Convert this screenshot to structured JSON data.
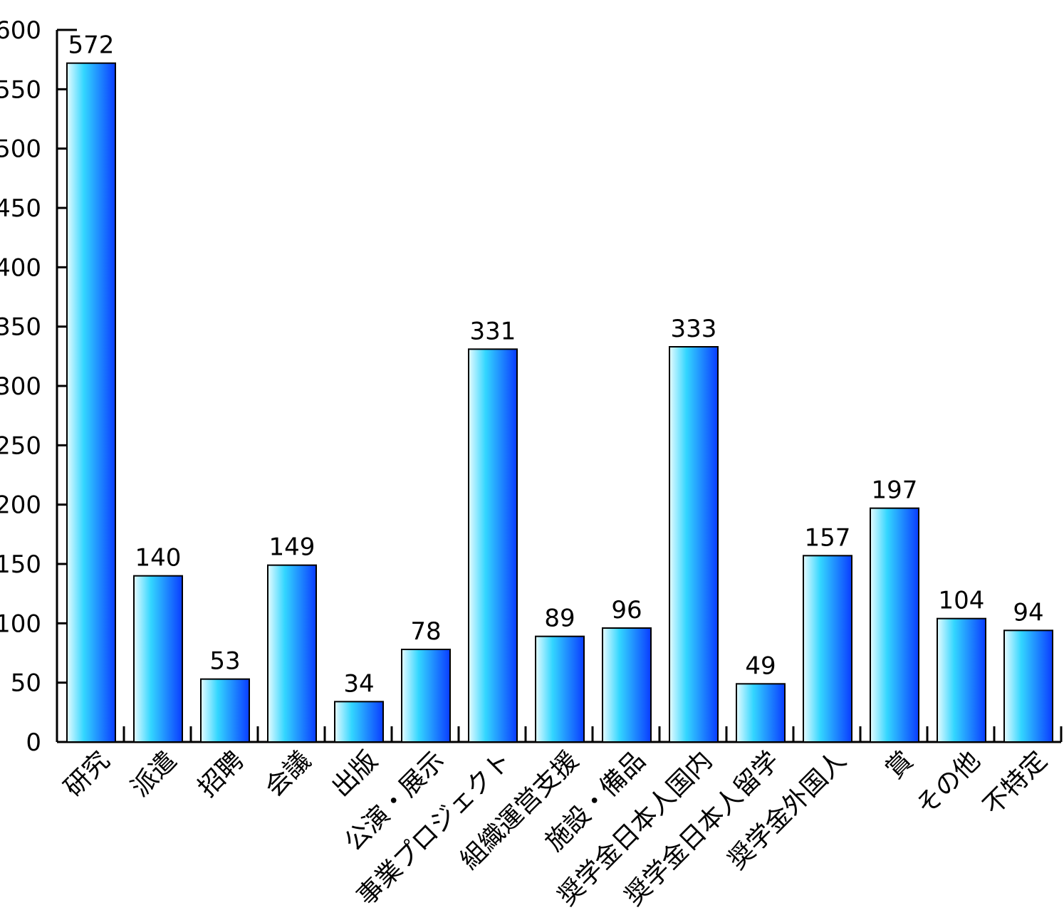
{
  "chart_data": {
    "type": "bar",
    "title": "",
    "xlabel": "",
    "ylabel": "",
    "ylim": [
      0,
      600
    ],
    "yticks": [
      0,
      50,
      100,
      150,
      200,
      250,
      300,
      350,
      400,
      450,
      500,
      550,
      600
    ],
    "grid": false,
    "data_labels": true,
    "bar_gradient": [
      "#e6fbff",
      "#33d6ff",
      "#0a3cff"
    ],
    "categories": [
      "研究",
      "派遣",
      "招聘",
      "会議",
      "出版",
      "公演・展示",
      "事業プロジェクト",
      "組織運営支援",
      "施設・備品",
      "奨学金日本人国内",
      "奨学金日本人留学",
      "奨学金外国人",
      "賞",
      "その他",
      "不特定"
    ],
    "values": [
      572,
      140,
      53,
      149,
      34,
      78,
      331,
      89,
      96,
      333,
      49,
      157,
      197,
      104,
      94
    ]
  }
}
